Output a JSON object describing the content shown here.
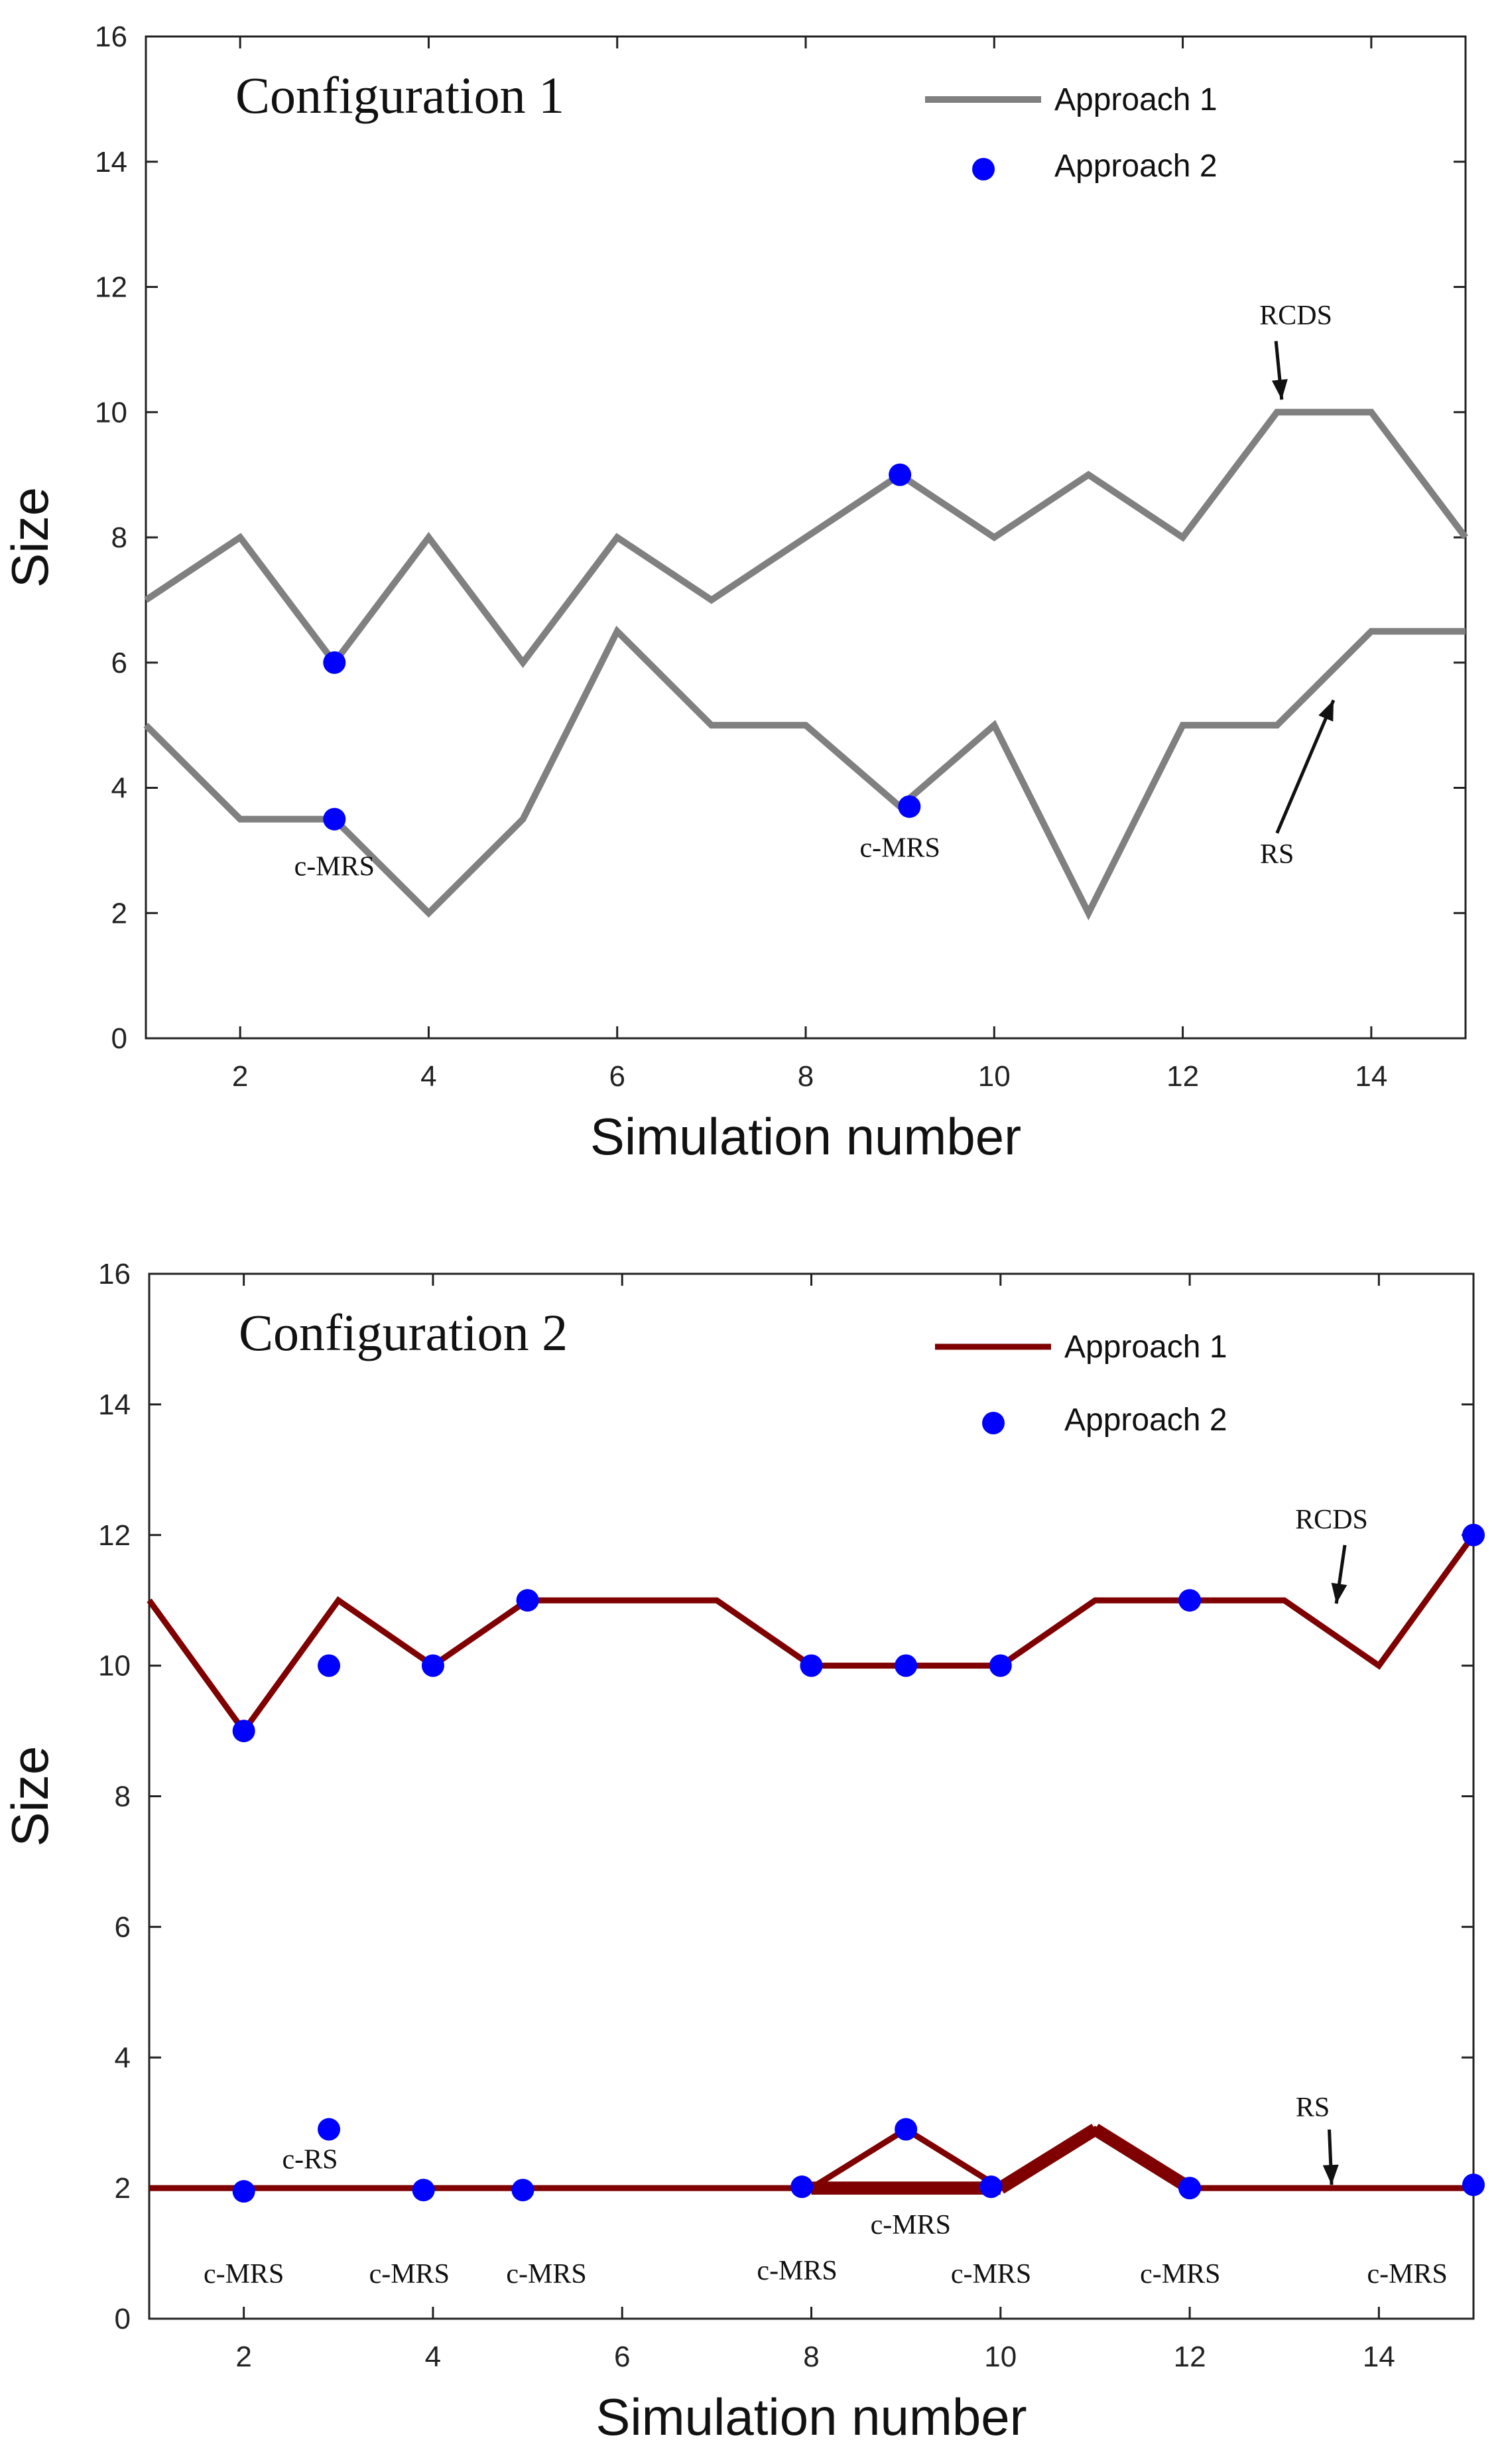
{
  "chart_data": [
    {
      "type": "line",
      "title": "Configuration 1",
      "xlabel": "Simulation number",
      "ylabel": "Size",
      "xlim": [
        1,
        15
      ],
      "ylim": [
        0,
        16
      ],
      "xticks": [
        2,
        4,
        6,
        8,
        10,
        12,
        14
      ],
      "yticks": [
        0,
        2,
        4,
        6,
        8,
        10,
        12,
        14,
        16
      ],
      "legend": {
        "position": "top-right",
        "entries": [
          "Approach 1",
          "Approach 2"
        ]
      },
      "colors": {
        "line": "#808080",
        "points": "#0000ff"
      },
      "series": [
        {
          "name": "Approach 1",
          "kind": "line",
          "label": "RCDS",
          "x": [
            1,
            2,
            3,
            4,
            5,
            6,
            7,
            8,
            9,
            10,
            11,
            12,
            13,
            14,
            15
          ],
          "values": [
            7,
            8,
            6,
            8,
            6,
            8,
            7,
            8,
            9,
            8,
            9,
            8,
            10,
            10,
            8
          ]
        },
        {
          "name": "Approach 1",
          "kind": "line",
          "label": "RS",
          "x": [
            1,
            2,
            3,
            4,
            5,
            6,
            7,
            8,
            9,
            10,
            11,
            12,
            13,
            14,
            15
          ],
          "values": [
            5,
            3.5,
            3.5,
            2,
            3.5,
            6.5,
            5,
            5,
            3.7,
            5,
            2,
            5,
            5,
            6.5,
            6.5
          ]
        },
        {
          "name": "Approach 2",
          "kind": "points",
          "x": [
            3,
            3,
            9,
            9.1
          ],
          "values": [
            6,
            3.5,
            9,
            3.7
          ]
        }
      ],
      "annotations": [
        {
          "text": "RCDS",
          "x": 13.2,
          "y": 11.4
        },
        {
          "text": "RS",
          "x": 13.0,
          "y": 2.8
        },
        {
          "text": "c-MRS",
          "x": 3.0,
          "y": 2.6
        },
        {
          "text": "c-MRS",
          "x": 9.0,
          "y": 2.9
        }
      ]
    },
    {
      "type": "line",
      "title": "Configuration 2",
      "xlabel": "Simulation number",
      "ylabel": "Size",
      "xlim": [
        1,
        15
      ],
      "ylim": [
        0,
        16
      ],
      "xticks": [
        2,
        4,
        6,
        8,
        10,
        12,
        14
      ],
      "yticks": [
        0,
        2,
        4,
        6,
        8,
        10,
        12,
        14,
        16
      ],
      "legend": {
        "position": "top-right",
        "entries": [
          "Approach 1",
          "Approach 2"
        ]
      },
      "colors": {
        "line": "#7f0000",
        "points": "#0000ff"
      },
      "series": [
        {
          "name": "Approach 1",
          "kind": "line",
          "label": "RCDS",
          "x": [
            1,
            2,
            3,
            4,
            5,
            6,
            7,
            8,
            9,
            10,
            11,
            12,
            13,
            14,
            15
          ],
          "values": [
            11,
            9,
            11,
            10,
            11,
            11,
            11,
            10,
            10,
            10,
            11,
            11,
            11,
            10,
            12
          ]
        },
        {
          "name": "Approach 1",
          "kind": "line",
          "label": "RS",
          "x": [
            1,
            2,
            3,
            4,
            5,
            6,
            7,
            8,
            9,
            10,
            11,
            12,
            13,
            14,
            15
          ],
          "values": [
            2,
            2,
            2,
            2,
            2,
            2,
            2,
            2,
            2.9,
            2,
            2.9,
            2,
            2,
            2,
            2
          ]
        },
        {
          "name": "Approach 2",
          "kind": "points",
          "x": [
            2,
            2.9,
            4,
            5,
            8,
            9,
            10,
            12,
            15,
            2,
            2.9,
            3.9,
            4.95,
            7.9,
            9,
            9.9,
            12,
            15
          ],
          "values": [
            9,
            10,
            10,
            11,
            10,
            10,
            10,
            11,
            12,
            1.95,
            2.9,
            1.97,
            1.97,
            2.02,
            2.9,
            2.02,
            2.0,
            2.05
          ]
        }
      ],
      "annotations": [
        {
          "text": "RCDS",
          "x": 13.5,
          "y": 12.1
        },
        {
          "text": "RS",
          "x": 13.3,
          "y": 3.1
        },
        {
          "text": "c-RS",
          "x": 2.7,
          "y": 2.3
        },
        {
          "text": "c-MRS",
          "x": 2.0,
          "y": 0.55
        },
        {
          "text": "c-MRS",
          "x": 3.75,
          "y": 0.55
        },
        {
          "text": "c-MRS",
          "x": 5.2,
          "y": 0.55
        },
        {
          "text": "c-MRS",
          "x": 7.85,
          "y": 0.6
        },
        {
          "text": "c-MRS",
          "x": 9.05,
          "y": 1.3
        },
        {
          "text": "c-MRS",
          "x": 9.9,
          "y": 0.55
        },
        {
          "text": "c-MRS",
          "x": 11.9,
          "y": 0.55
        },
        {
          "text": "c-MRS",
          "x": 14.3,
          "y": 0.55
        }
      ]
    }
  ]
}
